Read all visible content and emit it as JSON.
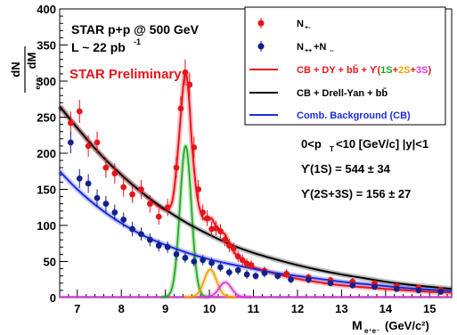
{
  "chart_data": {
    "type": "scatter",
    "xlabel": "M",
    "xlabel_sub": "e⁺e⁻",
    "xlabel_unit": "(GeV/c²)",
    "ylabel_num": "dN",
    "ylabel_den": "dM",
    "ylabel_den_sub": "e⁺e⁻",
    "xlim": [
      6.6,
      15.5
    ],
    "ylim": [
      0,
      400
    ],
    "xticks": [
      "7",
      "8",
      "9",
      "10",
      "11",
      "12",
      "13",
      "14",
      "15"
    ],
    "yticks": [
      "0",
      "50",
      "100",
      "150",
      "200",
      "250",
      "300",
      "350",
      "400"
    ],
    "annotations": {
      "experiment": "STAR p+p @ 500 GeV",
      "lumi": "L ~ 22 pb",
      "lumi_sup": "-1",
      "preliminary": "STAR Preliminary",
      "kin_range": "0<p",
      "kin_sub": "T",
      "kin_rest": "<10 [GeV/c]   |y|<1",
      "yield_1s": "ϒ(1S) = 544 ± 34",
      "yield_23s": "ϒ(2S+3S) = 156 ± 27"
    },
    "legend": {
      "position": "top-right",
      "entries": [
        {
          "label": "N+-",
          "kind": "marker",
          "color": "#e8141b"
        },
        {
          "label": "N++ + N--",
          "kind": "marker",
          "color": "#13218a"
        },
        {
          "label": "CB + DY + bb̄ + ϒ(1S+2S+3S)",
          "kind": "line",
          "color": "#e8141b"
        },
        {
          "label": "CB + Drell-Yan + bb̄",
          "kind": "line",
          "color": "#000000"
        },
        {
          "label": "Comb. Background (CB)",
          "kind": "line",
          "color": "#1b2be0"
        }
      ],
      "text": {
        "n_unlike": "N",
        "n_unlike_sub": "+-",
        "n_like_a": "N",
        "n_like_a_sub": "++",
        "n_like_plus": "+N",
        "n_like_b_sub": "--",
        "fit_prefix": "CB + DY + bb̄ + ϒ(",
        "fit_1s": "1S",
        "fit_plus1": "+",
        "fit_2s": "2S",
        "fit_plus2": "+",
        "fit_3s": "3S",
        "fit_close": ")",
        "bg_fit": "CB + Drell-Yan + bb̄",
        "cb": "Comb. Background (CB)"
      }
    },
    "colors": {
      "unlike": "#e8141b",
      "like": "#13218a",
      "fit_total": "#e8141b",
      "fit_bg": "#000000",
      "cb": "#1b2be0",
      "upsilon_1s": "#1aa81a",
      "upsilon_2s": "#f5a000",
      "upsilon_3s": "#d63ad6",
      "preliminary": "#e8141b"
    },
    "series": [
      {
        "name": "N+-",
        "kind": "points",
        "x": [
          6.85,
          7.05,
          7.25,
          7.45,
          7.65,
          7.85,
          8.05,
          8.25,
          8.45,
          8.65,
          8.85,
          9.05,
          9.25,
          9.35,
          9.45,
          9.55,
          9.65,
          9.75,
          9.85,
          9.95,
          10.05,
          10.15,
          10.25,
          10.35,
          10.45,
          10.55,
          10.65,
          10.75,
          10.85,
          10.95,
          11.25,
          11.75,
          12.25,
          12.75,
          13.25,
          13.75,
          14.25,
          14.75,
          15.25
        ],
        "y": [
          242,
          258,
          210,
          215,
          180,
          172,
          153,
          143,
          150,
          130,
          112,
          125,
          180,
          262,
          312,
          295,
          208,
          150,
          118,
          110,
          95,
          96,
          92,
          80,
          72,
          68,
          57,
          52,
          47,
          45,
          37,
          33,
          28,
          24,
          22,
          20,
          16,
          14,
          11
        ],
        "err": [
          16,
          16,
          15,
          15,
          14,
          14,
          13,
          12,
          13,
          12,
          11,
          12,
          14,
          17,
          18,
          17,
          15,
          13,
          11,
          11,
          10,
          10,
          10,
          9,
          9,
          8,
          8,
          8,
          7,
          7,
          6,
          6,
          5,
          5,
          5,
          4,
          4,
          4,
          3
        ]
      },
      {
        "name": "N++ + N--",
        "kind": "points",
        "x": [
          6.85,
          7.05,
          7.25,
          7.45,
          7.65,
          7.85,
          8.05,
          8.25,
          8.45,
          8.65,
          8.85,
          9.05,
          9.25,
          9.45,
          9.65,
          9.85,
          10.05,
          10.25,
          10.45,
          10.65,
          10.85,
          11.05,
          11.25,
          11.55,
          11.85,
          12.25,
          12.75,
          13.25,
          13.75,
          14.25,
          14.75,
          15.25
        ],
        "y": [
          215,
          165,
          158,
          138,
          130,
          118,
          108,
          95,
          88,
          80,
          72,
          70,
          60,
          55,
          50,
          52,
          48,
          42,
          35,
          38,
          32,
          30,
          34,
          30,
          25,
          25,
          20,
          17,
          15,
          12,
          10,
          8
        ],
        "err": [
          15,
          13,
          13,
          12,
          11,
          11,
          10,
          10,
          9,
          9,
          8,
          8,
          8,
          7,
          7,
          7,
          7,
          6,
          6,
          6,
          6,
          5,
          6,
          5,
          5,
          5,
          4,
          4,
          4,
          4,
          3,
          3
        ]
      },
      {
        "name": "CB + DY + bb̄ + ϒ(1S+2S+3S)",
        "kind": "curve",
        "x": [
          6.6,
          7.0,
          7.5,
          8.0,
          8.5,
          8.9,
          9.1,
          9.2,
          9.3,
          9.4,
          9.45,
          9.5,
          9.55,
          9.6,
          9.7,
          9.8,
          9.9,
          10.0,
          10.05,
          10.1,
          10.2,
          10.3,
          10.35,
          10.4,
          10.5,
          10.6,
          10.8,
          11.0,
          11.5,
          12.0,
          12.5,
          13.0,
          14.0,
          15.0,
          15.5
        ],
        "y": [
          265,
          235,
          200,
          170,
          144,
          124,
          125,
          150,
          215,
          290,
          312,
          300,
          265,
          215,
          150,
          118,
          108,
          108,
          110,
          104,
          96,
          90,
          88,
          82,
          70,
          60,
          50,
          42,
          33,
          26,
          21,
          17,
          12,
          8,
          7
        ]
      },
      {
        "name": "CB + Drell-Yan + bb̄",
        "kind": "curve",
        "x": [
          6.6,
          7.0,
          7.5,
          8.0,
          8.5,
          9.0,
          9.5,
          10.0,
          10.5,
          11.0,
          11.5,
          12.0,
          12.5,
          13.0,
          13.5,
          14.0,
          14.5,
          15.0,
          15.5
        ],
        "y": [
          265,
          235,
          200,
          170,
          144,
          122,
          103,
          87,
          73,
          62,
          53,
          45,
          38,
          32,
          27,
          22,
          18,
          15,
          12
        ]
      },
      {
        "name": "Comb. Background (CB)",
        "kind": "curve",
        "x": [
          6.6,
          7.0,
          7.5,
          8.0,
          8.5,
          9.0,
          9.5,
          10.0,
          10.5,
          11.0,
          11.5,
          12.0,
          12.5,
          13.0,
          13.5,
          14.0,
          14.5,
          15.0,
          15.5
        ],
        "y": [
          175,
          150,
          124,
          103,
          86,
          73,
          62,
          53,
          46,
          40,
          34,
          30,
          26,
          22,
          19,
          16,
          13,
          11,
          9
        ]
      },
      {
        "name": "ϒ(1S)",
        "kind": "gaussian",
        "mean": 9.46,
        "sigma": 0.13,
        "amp": 209
      },
      {
        "name": "ϒ(2S)",
        "kind": "gaussian",
        "mean": 10.02,
        "sigma": 0.14,
        "amp": 38
      },
      {
        "name": "ϒ(3S)",
        "kind": "gaussian",
        "mean": 10.36,
        "sigma": 0.14,
        "amp": 20
      }
    ]
  }
}
